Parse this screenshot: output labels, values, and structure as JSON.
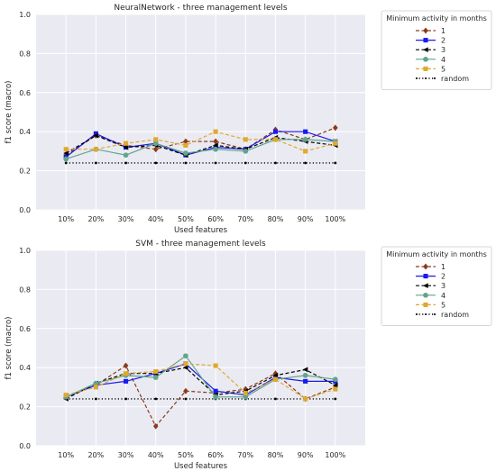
{
  "chart_data": [
    {
      "type": "line",
      "title": "NeuralNetwork - three management levels",
      "xlabel": "Used features",
      "ylabel": "f1 score (macro)",
      "categories": [
        "10%",
        "20%",
        "30%",
        "40%",
        "50%",
        "60%",
        "70%",
        "80%",
        "90%",
        "100%"
      ],
      "ylim": [
        0.0,
        1.0
      ],
      "yticks": [
        "0.0",
        "0.2",
        "0.4",
        "0.6",
        "0.8",
        "1.0"
      ],
      "grid": true,
      "legend": {
        "title": "Minimum activity in months",
        "placement": "outside-right"
      },
      "series": [
        {
          "name": "1",
          "color": "#8b3a1a",
          "marker": "diamond",
          "line": "dashed",
          "values": [
            0.28,
            0.38,
            0.33,
            0.31,
            0.35,
            0.35,
            0.31,
            0.41,
            0.36,
            0.42
          ]
        },
        {
          "name": "2",
          "color": "#1a1aee",
          "marker": "square",
          "line": "solid",
          "values": [
            0.27,
            0.39,
            0.32,
            0.34,
            0.28,
            0.32,
            0.31,
            0.4,
            0.4,
            0.35
          ]
        },
        {
          "name": "3",
          "color": "#000000",
          "marker": "triangle-left",
          "line": "dashed",
          "values": [
            0.29,
            0.38,
            0.32,
            0.33,
            0.28,
            0.33,
            0.31,
            0.37,
            0.35,
            0.33
          ]
        },
        {
          "name": "4",
          "color": "#5fa68a",
          "marker": "circle",
          "line": "solid",
          "values": [
            0.26,
            0.31,
            0.28,
            0.34,
            0.29,
            0.31,
            0.3,
            0.36,
            0.36,
            0.35
          ]
        },
        {
          "name": "5",
          "color": "#e0a82e",
          "marker": "square",
          "line": "dashed",
          "values": [
            0.31,
            0.31,
            0.34,
            0.36,
            0.33,
            0.4,
            0.36,
            0.36,
            0.3,
            0.34
          ]
        },
        {
          "name": "random",
          "color": "#000000",
          "marker": "dot",
          "line": "dotted",
          "values": [
            0.24,
            0.24,
            0.24,
            0.24,
            0.24,
            0.24,
            0.24,
            0.24,
            0.24,
            0.24
          ]
        }
      ]
    },
    {
      "type": "line",
      "title": "SVM - three management levels",
      "xlabel": "Used features",
      "ylabel": "f1 score (macro)",
      "categories": [
        "10%",
        "20%",
        "30%",
        "40%",
        "50%",
        "60%",
        "70%",
        "80%",
        "90%",
        "100%"
      ],
      "ylim": [
        0.0,
        1.0
      ],
      "yticks": [
        "0.0",
        "0.2",
        "0.4",
        "0.6",
        "0.8",
        "1.0"
      ],
      "grid": true,
      "legend": {
        "title": "Minimum activity in months",
        "placement": "outside-right"
      },
      "series": [
        {
          "name": "1",
          "color": "#8b3a1a",
          "marker": "diamond",
          "line": "dashed",
          "values": [
            0.25,
            0.31,
            0.41,
            0.1,
            0.28,
            0.27,
            0.29,
            0.37,
            0.24,
            0.3
          ]
        },
        {
          "name": "2",
          "color": "#1a1aee",
          "marker": "square",
          "line": "solid",
          "values": [
            0.25,
            0.31,
            0.33,
            0.37,
            0.42,
            0.28,
            0.26,
            0.35,
            0.33,
            0.33
          ]
        },
        {
          "name": "3",
          "color": "#000000",
          "marker": "triangle-left",
          "line": "dashed",
          "values": [
            0.24,
            0.32,
            0.37,
            0.37,
            0.4,
            0.26,
            0.28,
            0.36,
            0.39,
            0.31
          ]
        },
        {
          "name": "4",
          "color": "#5fa68a",
          "marker": "circle",
          "line": "solid",
          "values": [
            0.25,
            0.32,
            0.36,
            0.35,
            0.46,
            0.25,
            0.25,
            0.34,
            0.36,
            0.34
          ]
        },
        {
          "name": "5",
          "color": "#e0a82e",
          "marker": "square",
          "line": "dashed",
          "values": [
            0.26,
            0.3,
            0.37,
            0.38,
            0.42,
            0.41,
            0.27,
            0.34,
            0.24,
            0.29
          ]
        },
        {
          "name": "random",
          "color": "#000000",
          "marker": "dot",
          "line": "dotted",
          "values": [
            0.24,
            0.24,
            0.24,
            0.24,
            0.24,
            0.24,
            0.24,
            0.24,
            0.24,
            0.24
          ]
        }
      ]
    }
  ]
}
